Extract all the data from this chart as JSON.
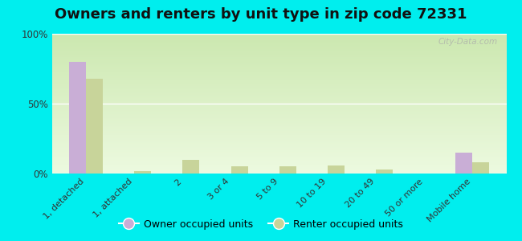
{
  "title": "Owners and renters by unit type in zip code 72331",
  "categories": [
    "1, detached",
    "1, attached",
    "2",
    "3 or 4",
    "5 to 9",
    "10 to 19",
    "20 to 49",
    "50 or more",
    "Mobile home"
  ],
  "owner_values": [
    80,
    0,
    0,
    0,
    0,
    0,
    0,
    0,
    15
  ],
  "renter_values": [
    68,
    2,
    10,
    5,
    5,
    6,
    3,
    0,
    8
  ],
  "owner_color": "#c9aed6",
  "renter_color": "#c8d49a",
  "background_color": "#00eeee",
  "grad_top": "#cce8b0",
  "grad_bottom": "#edfae0",
  "ylim": [
    0,
    100
  ],
  "yticks": [
    0,
    50,
    100
  ],
  "ytick_labels": [
    "0%",
    "50%",
    "100%"
  ],
  "legend_owner": "Owner occupied units",
  "legend_renter": "Renter occupied units",
  "title_fontsize": 13,
  "watermark": "City-Data.com"
}
